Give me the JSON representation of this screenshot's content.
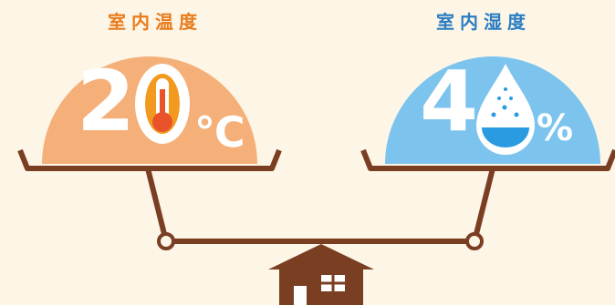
{
  "temperature": {
    "label": "室内温度",
    "value": "2",
    "unit": "℃",
    "color": "#f5b07a",
    "accent": "#f08a1c"
  },
  "humidity": {
    "label": "室内湿度",
    "value": "4",
    "unit": "%",
    "color": "#7cc4ee",
    "accent": "#2a9be0"
  },
  "scale": {
    "color": "#7a3e22"
  },
  "background": "#fdf5e6"
}
